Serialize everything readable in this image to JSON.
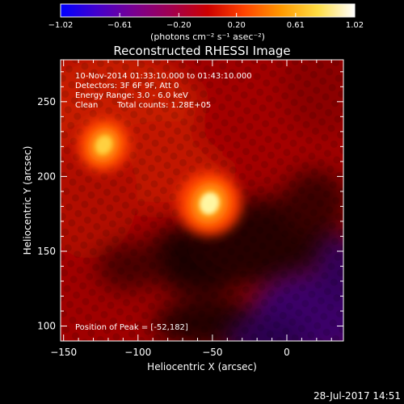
{
  "chart_data": [
    {
      "type": "colorbar",
      "ticks": [
        "-1.02",
        "-0.61",
        "-0.20",
        "0.20",
        "0.61",
        "1.02"
      ],
      "range": [
        -1.02,
        1.02
      ],
      "unit_label": "(photons cm⁻² s⁻¹ asec⁻²)",
      "colormap": [
        "#0000ff",
        "#4400cc",
        "#7a0090",
        "#a00050",
        "#cc0000",
        "#ff4400",
        "#ff9900",
        "#ffdd44",
        "#ffffff"
      ]
    },
    {
      "type": "heatmap",
      "title": "Reconstructed RHESSI Image",
      "xlabel": "Heliocentric X (arcsec)",
      "ylabel": "Heliocentric Y (arcsec)",
      "xlim": [
        -152,
        38
      ],
      "ylim": [
        90,
        278
      ],
      "xticks": [
        {
          "value": -150,
          "label": "−150"
        },
        {
          "value": -100,
          "label": "−100"
        },
        {
          "value": -50,
          "label": "−50"
        },
        {
          "value": 0,
          "label": "0"
        }
      ],
      "yticks": [
        {
          "value": 100,
          "label": "100"
        },
        {
          "value": 150,
          "label": "150"
        },
        {
          "value": 200,
          "label": "200"
        },
        {
          "value": 250,
          "label": "250"
        }
      ],
      "sources": [
        {
          "x": -52,
          "y": 182,
          "peak": 1.0
        },
        {
          "x": -123,
          "y": 221,
          "peak": 0.78
        }
      ],
      "background_colors": {
        "bright": "#d62a00",
        "mid": "#a00000",
        "dark": "#150000",
        "negative": "#3a0068"
      },
      "annotations": {
        "time": "10-Nov-2014 01:33:10.000 to 01:43:10.000",
        "detectors": "Detectors: 3F 6F 9F, Att 0",
        "energy": "Energy Range: 3.0 - 6.0 keV",
        "algorithm": "Clean",
        "counts": "Total counts: 1.28E+05",
        "peak": "Position of Peak = [-52,182]"
      }
    }
  ],
  "footer": {
    "timestamp": "28-Jul-2017 14:51"
  }
}
